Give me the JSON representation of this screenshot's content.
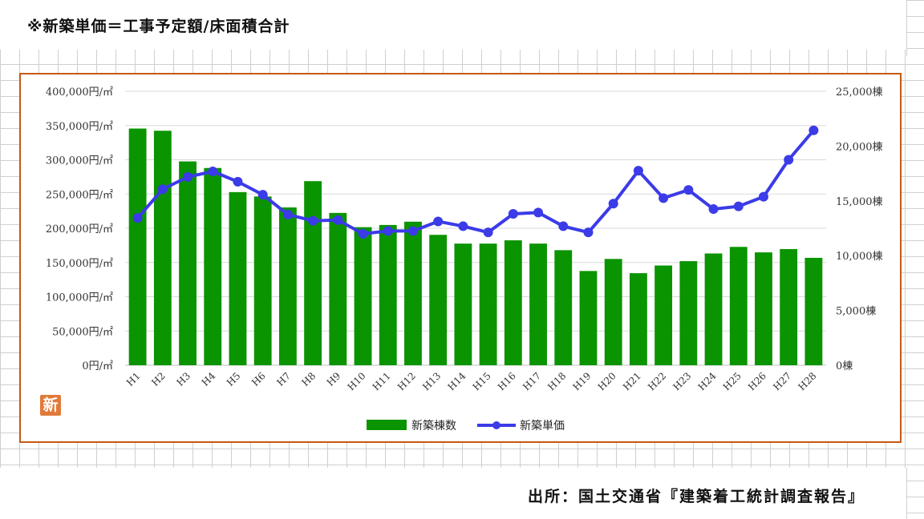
{
  "header": {
    "title": "※新築単価＝工事予定額/床面積合計"
  },
  "footer": {
    "source": "出所：国土交通省『建築着工統計調査報告』"
  },
  "badge": {
    "label": "新"
  },
  "colors": {
    "bars": "#0a9400",
    "line": "#3b3be8",
    "frame": "#c55a11",
    "grid": "#d9d9d9"
  },
  "chart_data": {
    "type": "bar",
    "title": "",
    "categories": [
      "H1",
      "H2",
      "H3",
      "H4",
      "H5",
      "H6",
      "H7",
      "H8",
      "H9",
      "H10",
      "H11",
      "H12",
      "H13",
      "H14",
      "H15",
      "H16",
      "H17",
      "H18",
      "H19",
      "H20",
      "H21",
      "H22",
      "H23",
      "H24",
      "H25",
      "H26",
      "H27",
      "H28"
    ],
    "series": [
      {
        "name": "新築棟数",
        "type": "bar",
        "axis": "right",
        "values": [
          21600,
          21400,
          18600,
          18000,
          15800,
          15400,
          14400,
          16800,
          13900,
          12600,
          12800,
          13100,
          11900,
          11100,
          11100,
          11400,
          11100,
          10500,
          8600,
          9700,
          8400,
          9100,
          9500,
          10200,
          10800,
          10300,
          10600,
          9800
        ]
      },
      {
        "name": "新築単価",
        "type": "line",
        "axis": "left",
        "values": [
          215000,
          257000,
          275000,
          283000,
          268000,
          249000,
          220000,
          211000,
          212000,
          192000,
          196000,
          196000,
          210000,
          203000,
          194000,
          221000,
          223000,
          203000,
          194000,
          236000,
          284000,
          244000,
          256000,
          228000,
          232000,
          246000,
          300000,
          343000
        ]
      }
    ],
    "y_left": {
      "min": 0,
      "max": 400000,
      "ticks": [
        "0円/㎡",
        "50,000円/㎡",
        "100,000円/㎡",
        "150,000円/㎡",
        "200,000円/㎡",
        "250,000円/㎡",
        "300,000円/㎡",
        "350,000円/㎡",
        "400,000円/㎡"
      ]
    },
    "y_right": {
      "min": 0,
      "max": 25000,
      "ticks": [
        "0棟",
        "5,000棟",
        "10,000棟",
        "15,000棟",
        "20,000棟",
        "25,000棟"
      ]
    },
    "grid": true,
    "legend_position": "bottom-center"
  }
}
